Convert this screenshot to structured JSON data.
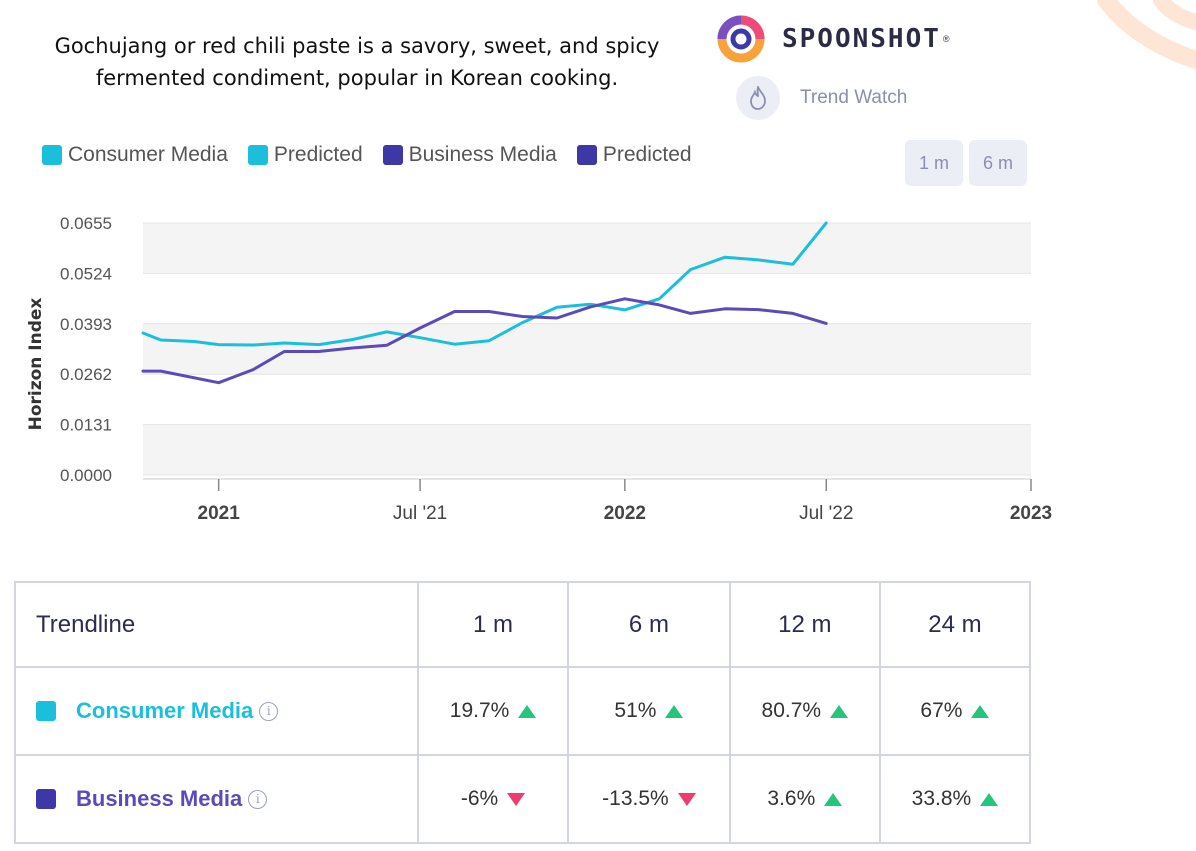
{
  "header": {
    "description_line1": "Gochujang or red chili paste is a savory, sweet, and spicy",
    "description_line2": "fermented condiment, popular in Korean cooking.",
    "brand": "SPOONSHOT",
    "trend_watch_label": "Trend Watch",
    "icons": {
      "logo": "spoonshot-logo-icon",
      "trend_watch": "flame-icon"
    }
  },
  "colors": {
    "consumer": "#1bbfdb",
    "business": "#5b4bb8",
    "up": "#27c47c",
    "down": "#f03b6e",
    "brand_orange": "#f7a23a"
  },
  "range_buttons": [
    "1 m",
    "6 m"
  ],
  "chart_data": {
    "type": "line",
    "ylabel": "Horizon Index",
    "xlabel": "",
    "yticks": [
      "0.0655",
      "0.0524",
      "0.0393",
      "0.0262",
      "0.0131",
      "0.0000"
    ],
    "ylim": [
      0,
      0.0655
    ],
    "xlim": [
      "2020-10-25",
      "2023-01-01"
    ],
    "xticks": [
      {
        "label": "2021",
        "date": "2021-01-01",
        "bold": true
      },
      {
        "label": "Jul '21",
        "date": "2021-07-01",
        "bold": false
      },
      {
        "label": "2022",
        "date": "2022-01-01",
        "bold": true
      },
      {
        "label": "Jul '22",
        "date": "2022-07-01",
        "bold": false
      },
      {
        "label": "2023",
        "date": "2023-01-01",
        "bold": true
      }
    ],
    "legend": [
      {
        "label": "Consumer Media",
        "color": "#1bbfdb"
      },
      {
        "label": "Predicted",
        "color": "#1bbfdb"
      },
      {
        "label": "Business Media",
        "color": "#5b4bb8"
      },
      {
        "label": "Predicted",
        "color": "#5b4bb8"
      }
    ],
    "legend_position": "top-left",
    "grid": true,
    "series": [
      {
        "name": "Consumer Media",
        "color": "#1bbfdb",
        "points": [
          [
            "2020-10-25",
            0.0369
          ],
          [
            "2020-11-10",
            0.0351
          ],
          [
            "2020-12-10",
            0.0347
          ],
          [
            "2021-01-01",
            0.0339
          ],
          [
            "2021-02-01",
            0.0338
          ],
          [
            "2021-03-01",
            0.0343
          ],
          [
            "2021-04-01",
            0.0339
          ],
          [
            "2021-05-01",
            0.0352
          ],
          [
            "2021-06-01",
            0.0372
          ],
          [
            "2021-07-01",
            0.0357
          ],
          [
            "2021-08-01",
            0.034
          ],
          [
            "2021-09-01",
            0.0349
          ],
          [
            "2021-10-01",
            0.0396
          ],
          [
            "2021-11-01",
            0.0436
          ],
          [
            "2021-12-01",
            0.0444
          ],
          [
            "2022-01-01",
            0.0429
          ],
          [
            "2022-02-01",
            0.0458
          ],
          [
            "2022-03-01",
            0.0534
          ],
          [
            "2022-04-01",
            0.0566
          ],
          [
            "2022-05-01",
            0.0559
          ],
          [
            "2022-06-01",
            0.0548
          ],
          [
            "2022-07-01",
            0.0655
          ]
        ]
      },
      {
        "name": "Business Media",
        "color": "#5b4bb8",
        "points": [
          [
            "2020-10-25",
            0.027
          ],
          [
            "2020-11-10",
            0.027
          ],
          [
            "2021-01-01",
            0.024
          ],
          [
            "2021-02-01",
            0.0274
          ],
          [
            "2021-03-01",
            0.0321
          ],
          [
            "2021-04-01",
            0.0321
          ],
          [
            "2021-05-01",
            0.033
          ],
          [
            "2021-06-01",
            0.0337
          ],
          [
            "2021-07-01",
            0.0382
          ],
          [
            "2021-08-01",
            0.0425
          ],
          [
            "2021-09-01",
            0.0425
          ],
          [
            "2021-10-01",
            0.0412
          ],
          [
            "2021-11-01",
            0.0408
          ],
          [
            "2021-12-01",
            0.0437
          ],
          [
            "2022-01-01",
            0.0458
          ],
          [
            "2022-02-01",
            0.0442
          ],
          [
            "2022-03-01",
            0.042
          ],
          [
            "2022-04-01",
            0.0432
          ],
          [
            "2022-05-01",
            0.043
          ],
          [
            "2022-06-01",
            0.042
          ],
          [
            "2022-07-01",
            0.0394
          ]
        ]
      }
    ]
  },
  "table": {
    "headers": [
      "Trendline",
      "1 m",
      "6 m",
      "12 m",
      "24 m"
    ],
    "rows": [
      {
        "name": "Consumer Media",
        "color": "#1bbfdb",
        "values": [
          "19.7%",
          "51%",
          "80.7%",
          "67%"
        ],
        "directions": [
          "up",
          "up",
          "up",
          "up"
        ]
      },
      {
        "name": "Business Media",
        "color": "#5b4bb8",
        "values": [
          "-6%",
          "-13.5%",
          "3.6%",
          "33.8%"
        ],
        "directions": [
          "down",
          "down",
          "up",
          "up"
        ]
      }
    ]
  }
}
